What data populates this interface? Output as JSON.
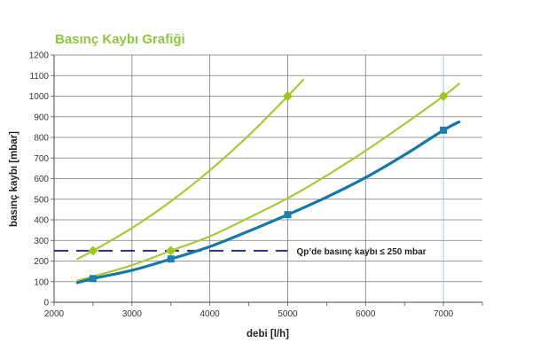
{
  "colors": {
    "green": "#a8c83a",
    "green_marker": "#9bc81e",
    "blue": "#1678a8",
    "blue_marker": "#1d7fb0",
    "dashed": "#2b2f86",
    "grid": "#7a7a7a",
    "title": "#8dc63f",
    "highlight_grid": "#8ec3e0"
  },
  "chart_data": {
    "type": "line",
    "title": "Basınç Kaybı Grafiği",
    "xlabel": "debi [l/h]",
    "ylabel": "basınç kaybı [mbar]",
    "xlim": [
      2000,
      7500
    ],
    "ylim": [
      0,
      1200
    ],
    "x_ticks": [
      2000,
      3000,
      4000,
      5000,
      6000,
      7000
    ],
    "y_ticks": [
      0,
      100,
      200,
      300,
      400,
      500,
      600,
      700,
      800,
      900,
      1000,
      1100,
      1200
    ],
    "grid": true,
    "legend": "none",
    "series": [
      {
        "color": "green",
        "marker": "diamond",
        "x": [
          2300,
          2500,
          3000,
          3500,
          4000,
          4500,
          5000,
          5200
        ],
        "y": [
          210,
          250,
          360,
          490,
          640,
          810,
          1000,
          1080
        ],
        "markers_x": [
          2500,
          5000
        ],
        "markers_y": [
          250,
          1000
        ]
      },
      {
        "color": "green",
        "marker": "diamond",
        "x": [
          2300,
          2500,
          3000,
          3500,
          4000,
          4500,
          5000,
          5500,
          6000,
          6500,
          7000,
          7200
        ],
        "y": [
          105,
          125,
          180,
          250,
          320,
          410,
          505,
          615,
          735,
          865,
          1000,
          1060
        ],
        "markers_x": [
          3500,
          7000
        ],
        "markers_y": [
          250,
          1000
        ]
      },
      {
        "color": "blue",
        "marker": "square",
        "x": [
          2300,
          2500,
          3000,
          3500,
          4000,
          4500,
          5000,
          5500,
          6000,
          6500,
          7000,
          7200
        ],
        "y": [
          95,
          115,
          155,
          210,
          270,
          345,
          425,
          510,
          605,
          715,
          835,
          875
        ],
        "markers_x": [
          2500,
          3500,
          5000,
          7000
        ],
        "markers_y": [
          115,
          210,
          425,
          835
        ]
      }
    ],
    "reference_line": {
      "y": 250,
      "x_start": 2000,
      "x_end": 5000,
      "label": "Qp’de basınç kaybı ≤ 250 mbar"
    }
  }
}
